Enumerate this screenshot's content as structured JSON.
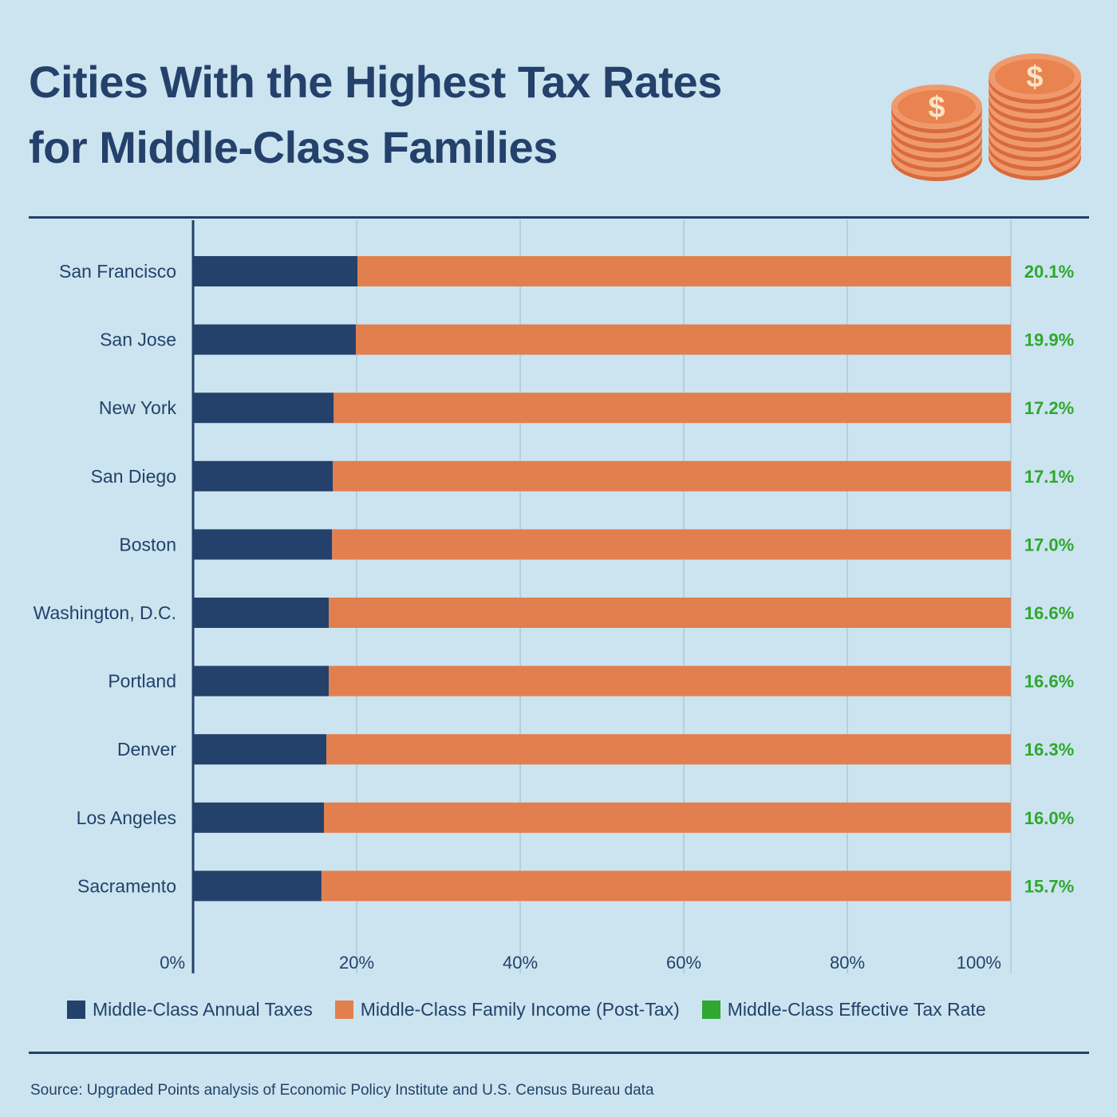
{
  "colors": {
    "background": "#cce4ef",
    "navy": "#23416b",
    "orange": "#e27f4e",
    "green": "#2ea82e",
    "grid": "#a9cad8"
  },
  "header": {
    "title_line1": "Cities With the Highest Tax Rates",
    "title_line2": "for Middle-Class Families",
    "icon": "coin-stacks-icon"
  },
  "chart_data": {
    "type": "bar",
    "orientation": "horizontal",
    "stacked": true,
    "title": "Cities With the Highest Tax Rates for Middle-Class Families",
    "categories": [
      "San Francisco",
      "San Jose",
      "New York",
      "San Diego",
      "Boston",
      "Washington, D.C.",
      "Portland",
      "Denver",
      "Los Angeles",
      "Sacramento"
    ],
    "series": [
      {
        "name": "Middle-Class Annual Taxes",
        "color": "#23416b",
        "values": [
          20.1,
          19.9,
          17.2,
          17.1,
          17.0,
          16.6,
          16.6,
          16.3,
          16.0,
          15.7
        ]
      },
      {
        "name": "Middle-Class Family Income (Post-Tax)",
        "color": "#e27f4e",
        "values": [
          79.9,
          80.1,
          82.8,
          82.9,
          83.0,
          83.4,
          83.4,
          83.7,
          84.0,
          84.3
        ]
      }
    ],
    "rate_labels": [
      "20.1%",
      "19.9%",
      "17.2%",
      "17.1%",
      "17.0%",
      "16.6%",
      "16.6%",
      "16.3%",
      "16.0%",
      "15.7%"
    ],
    "rate_series_name": "Middle-Class Effective Tax Rate",
    "rate_color": "#2ea82e",
    "xlim": [
      0,
      100
    ],
    "xticks": [
      0,
      20,
      40,
      60,
      80,
      100
    ],
    "xtick_labels": [
      "0%",
      "20%",
      "40%",
      "60%",
      "80%",
      "100%"
    ],
    "grid": true,
    "legend_position": "bottom"
  },
  "legend": [
    {
      "label": "Middle-Class Annual Taxes",
      "color": "#23416b"
    },
    {
      "label": "Middle-Class Family Income (Post-Tax)",
      "color": "#e27f4e"
    },
    {
      "label": "Middle-Class Effective Tax Rate",
      "color": "#2ea82e"
    }
  ],
  "source": "Source: Upgraded Points analysis of Economic Policy Institute and U.S. Census Bureau data"
}
